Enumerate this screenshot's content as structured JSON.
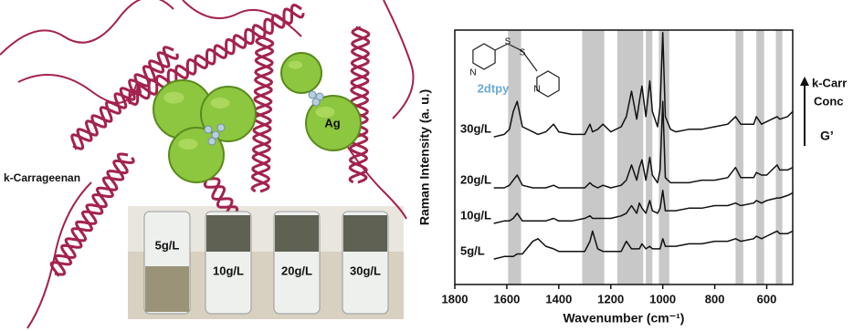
{
  "illustration": {
    "polymer_label": "k-Carrageenan",
    "particle_label": "Ag",
    "vial_labels": [
      "5g/L",
      "10g/L",
      "20g/L",
      "30g/L"
    ]
  },
  "chart_data": {
    "type": "line",
    "x_label": "Wavenumber (cm⁻¹)",
    "y_label": "Raman Intensity (a. u.)",
    "molecule": {
      "name": "2dtpy",
      "atoms": [
        "N",
        "S",
        "S",
        "N"
      ]
    },
    "annotation": {
      "arrow_text": [
        "k-Carr",
        "Conc"
      ],
      "modulus": "G’"
    },
    "xlim": [
      1800,
      500
    ],
    "xticks": [
      1800,
      1600,
      1400,
      1200,
      1000,
      800,
      600
    ],
    "ylim": [
      0,
      100
    ],
    "bands": [
      [
        1595,
        1545
      ],
      [
        1310,
        1225
      ],
      [
        1175,
        1075
      ],
      [
        1065,
        1040
      ],
      [
        1015,
        975
      ],
      [
        720,
        690
      ],
      [
        640,
        610
      ],
      [
        565,
        540
      ]
    ],
    "band_color": "#c8c8c8",
    "x": [
      1800,
      1750,
      1700,
      1650,
      1610,
      1590,
      1575,
      1560,
      1540,
      1500,
      1480,
      1450,
      1420,
      1400,
      1350,
      1300,
      1280,
      1270,
      1250,
      1230,
      1200,
      1160,
      1140,
      1120,
      1100,
      1090,
      1080,
      1065,
      1050,
      1040,
      1020,
      1010,
      1000,
      990,
      970,
      950,
      900,
      850,
      800,
      750,
      720,
      700,
      650,
      640,
      620,
      600,
      560,
      550,
      520,
      500
    ],
    "series": [
      {
        "name": "30g/L",
        "color": "#111111",
        "values": [
          null,
          null,
          null,
          58,
          59,
          61,
          68,
          72,
          62,
          60,
          59,
          60,
          63,
          60,
          59,
          59,
          63,
          60,
          61,
          63,
          60,
          62,
          66,
          76,
          65,
          72,
          78,
          66,
          80,
          68,
          62,
          70,
          99,
          66,
          61,
          60,
          61,
          61,
          62,
          63,
          66,
          63,
          63,
          66,
          63,
          64,
          66,
          65,
          66,
          68
        ]
      },
      {
        "name": "20g/L",
        "color": "#111111",
        "values": [
          null,
          null,
          null,
          38,
          38,
          39,
          41,
          43,
          39,
          38,
          38,
          38,
          39,
          38,
          38,
          38,
          40,
          39,
          38,
          39,
          38,
          39,
          41,
          47,
          41,
          46,
          49,
          41,
          50,
          43,
          40,
          45,
          72,
          42,
          40,
          40,
          40,
          41,
          41,
          42,
          46,
          42,
          42,
          44,
          43,
          43,
          47,
          45,
          45,
          46
        ]
      },
      {
        "name": "10g/L",
        "color": "#111111",
        "values": [
          null,
          null,
          null,
          24,
          25,
          25,
          26,
          28,
          25,
          25,
          25,
          25,
          26,
          25,
          25,
          26,
          27,
          26,
          26,
          26,
          26,
          27,
          28,
          31,
          28,
          32,
          30,
          28,
          33,
          29,
          28,
          30,
          37,
          29,
          29,
          29,
          30,
          30,
          31,
          31,
          32,
          31,
          32,
          33,
          32,
          33,
          34,
          34,
          35,
          36
        ]
      },
      {
        "name": "5g/L",
        "color": "#111111",
        "values": [
          null,
          null,
          null,
          10,
          11,
          11,
          11,
          12,
          12,
          17,
          18,
          15,
          14,
          13,
          13,
          13,
          17,
          21,
          14,
          13,
          13,
          13,
          17,
          14,
          14,
          14,
          16,
          14,
          15,
          14,
          14,
          14,
          18,
          15,
          15,
          15,
          16,
          16,
          17,
          17,
          18,
          17,
          18,
          19,
          18,
          19,
          21,
          20,
          20,
          21
        ]
      }
    ]
  }
}
